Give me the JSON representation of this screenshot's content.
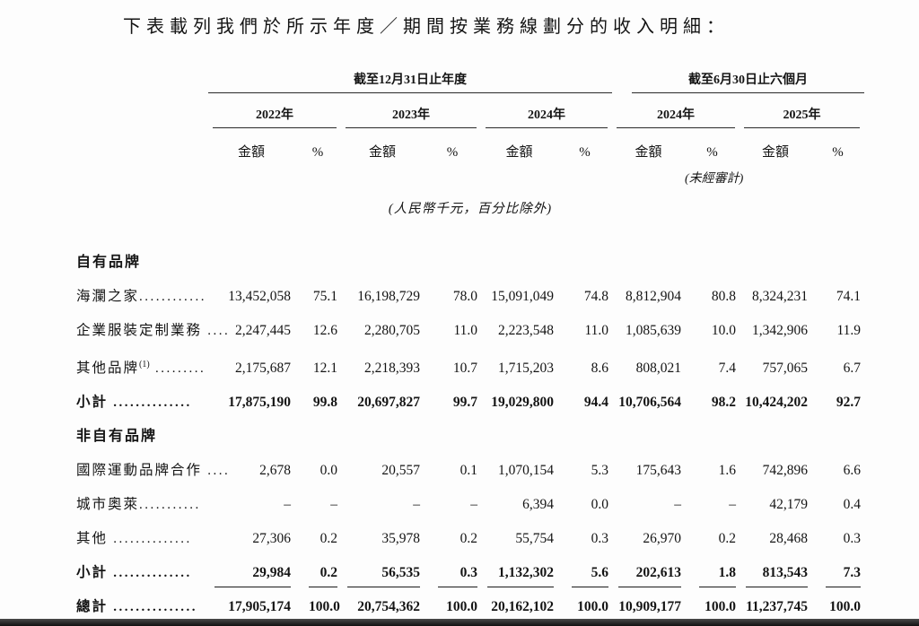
{
  "title": "下表載列我們於所示年度／期間按業務線劃分的收入明細：",
  "table": {
    "period_groups": [
      {
        "label": "截至12月31日止年度"
      },
      {
        "label": "截至6月30日止六個月"
      }
    ],
    "year_headers": [
      "2022年",
      "2023年",
      "2024年",
      "2024年",
      "2025年"
    ],
    "sub_headers": [
      "金額",
      "%",
      "金額",
      "%",
      "金額",
      "%",
      "金額",
      "%",
      "金額",
      "%"
    ],
    "unaudited_note": "(未經審計)",
    "unit_note": "(人民幣千元，百分比除外)",
    "rows": [
      {
        "type": "section",
        "label": "自有品牌"
      },
      {
        "type": "item",
        "label": "海瀾之家",
        "dots": "............",
        "values": [
          "13,452,058",
          "75.1",
          "16,198,729",
          "78.0",
          "15,091,049",
          "74.8",
          "8,812,904",
          "80.8",
          "8,324,231",
          "74.1"
        ]
      },
      {
        "type": "item",
        "label": "企業服裝定制業務",
        "dots": " ....",
        "values": [
          "2,247,445",
          "12.6",
          "2,280,705",
          "11.0",
          "2,223,548",
          "11.0",
          "1,085,639",
          "10.0",
          "1,342,906",
          "11.9"
        ]
      },
      {
        "type": "item",
        "label": "其他品牌",
        "sup": "(1)",
        "dots": " .........",
        "values": [
          "2,175,687",
          "12.1",
          "2,218,393",
          "10.7",
          "1,715,203",
          "8.6",
          "808,021",
          "7.4",
          "757,065",
          "6.7"
        ]
      },
      {
        "type": "subtotal",
        "label": "小計",
        "dots": " ..............",
        "values": [
          "17,875,190",
          "99.8",
          "20,697,827",
          "99.7",
          "19,029,800",
          "94.4",
          "10,706,564",
          "98.2",
          "10,424,202",
          "92.7"
        ]
      },
      {
        "type": "section",
        "label": "非自有品牌"
      },
      {
        "type": "item",
        "label": "國際運動品牌合作",
        "dots": " ....",
        "values": [
          "2,678",
          "0.0",
          "20,557",
          "0.1",
          "1,070,154",
          "5.3",
          "175,643",
          "1.6",
          "742,896",
          "6.6"
        ]
      },
      {
        "type": "item",
        "label": "城市奧萊",
        "dots": "...........",
        "values": [
          "–",
          "–",
          "–",
          "–",
          "6,394",
          "0.0",
          "–",
          "–",
          "42,179",
          "0.4"
        ]
      },
      {
        "type": "item",
        "label": "其他",
        "dots": " ..............",
        "values": [
          "27,306",
          "0.2",
          "35,978",
          "0.2",
          "55,754",
          "0.3",
          "26,970",
          "0.2",
          "28,468",
          "0.3"
        ]
      },
      {
        "type": "subtotal",
        "label": "小計",
        "dots": " ..............",
        "rule_below": true,
        "values": [
          "29,984",
          "0.2",
          "56,535",
          "0.3",
          "1,132,302",
          "5.6",
          "202,613",
          "1.8",
          "813,543",
          "7.3"
        ]
      },
      {
        "type": "total",
        "label": "總計",
        "dots": " ...............",
        "values": [
          "17,905,174",
          "100.0",
          "20,754,362",
          "100.0",
          "20,162,102",
          "100.0",
          "10,909,177",
          "100.0",
          "11,237,745",
          "100.0"
        ]
      }
    ]
  }
}
